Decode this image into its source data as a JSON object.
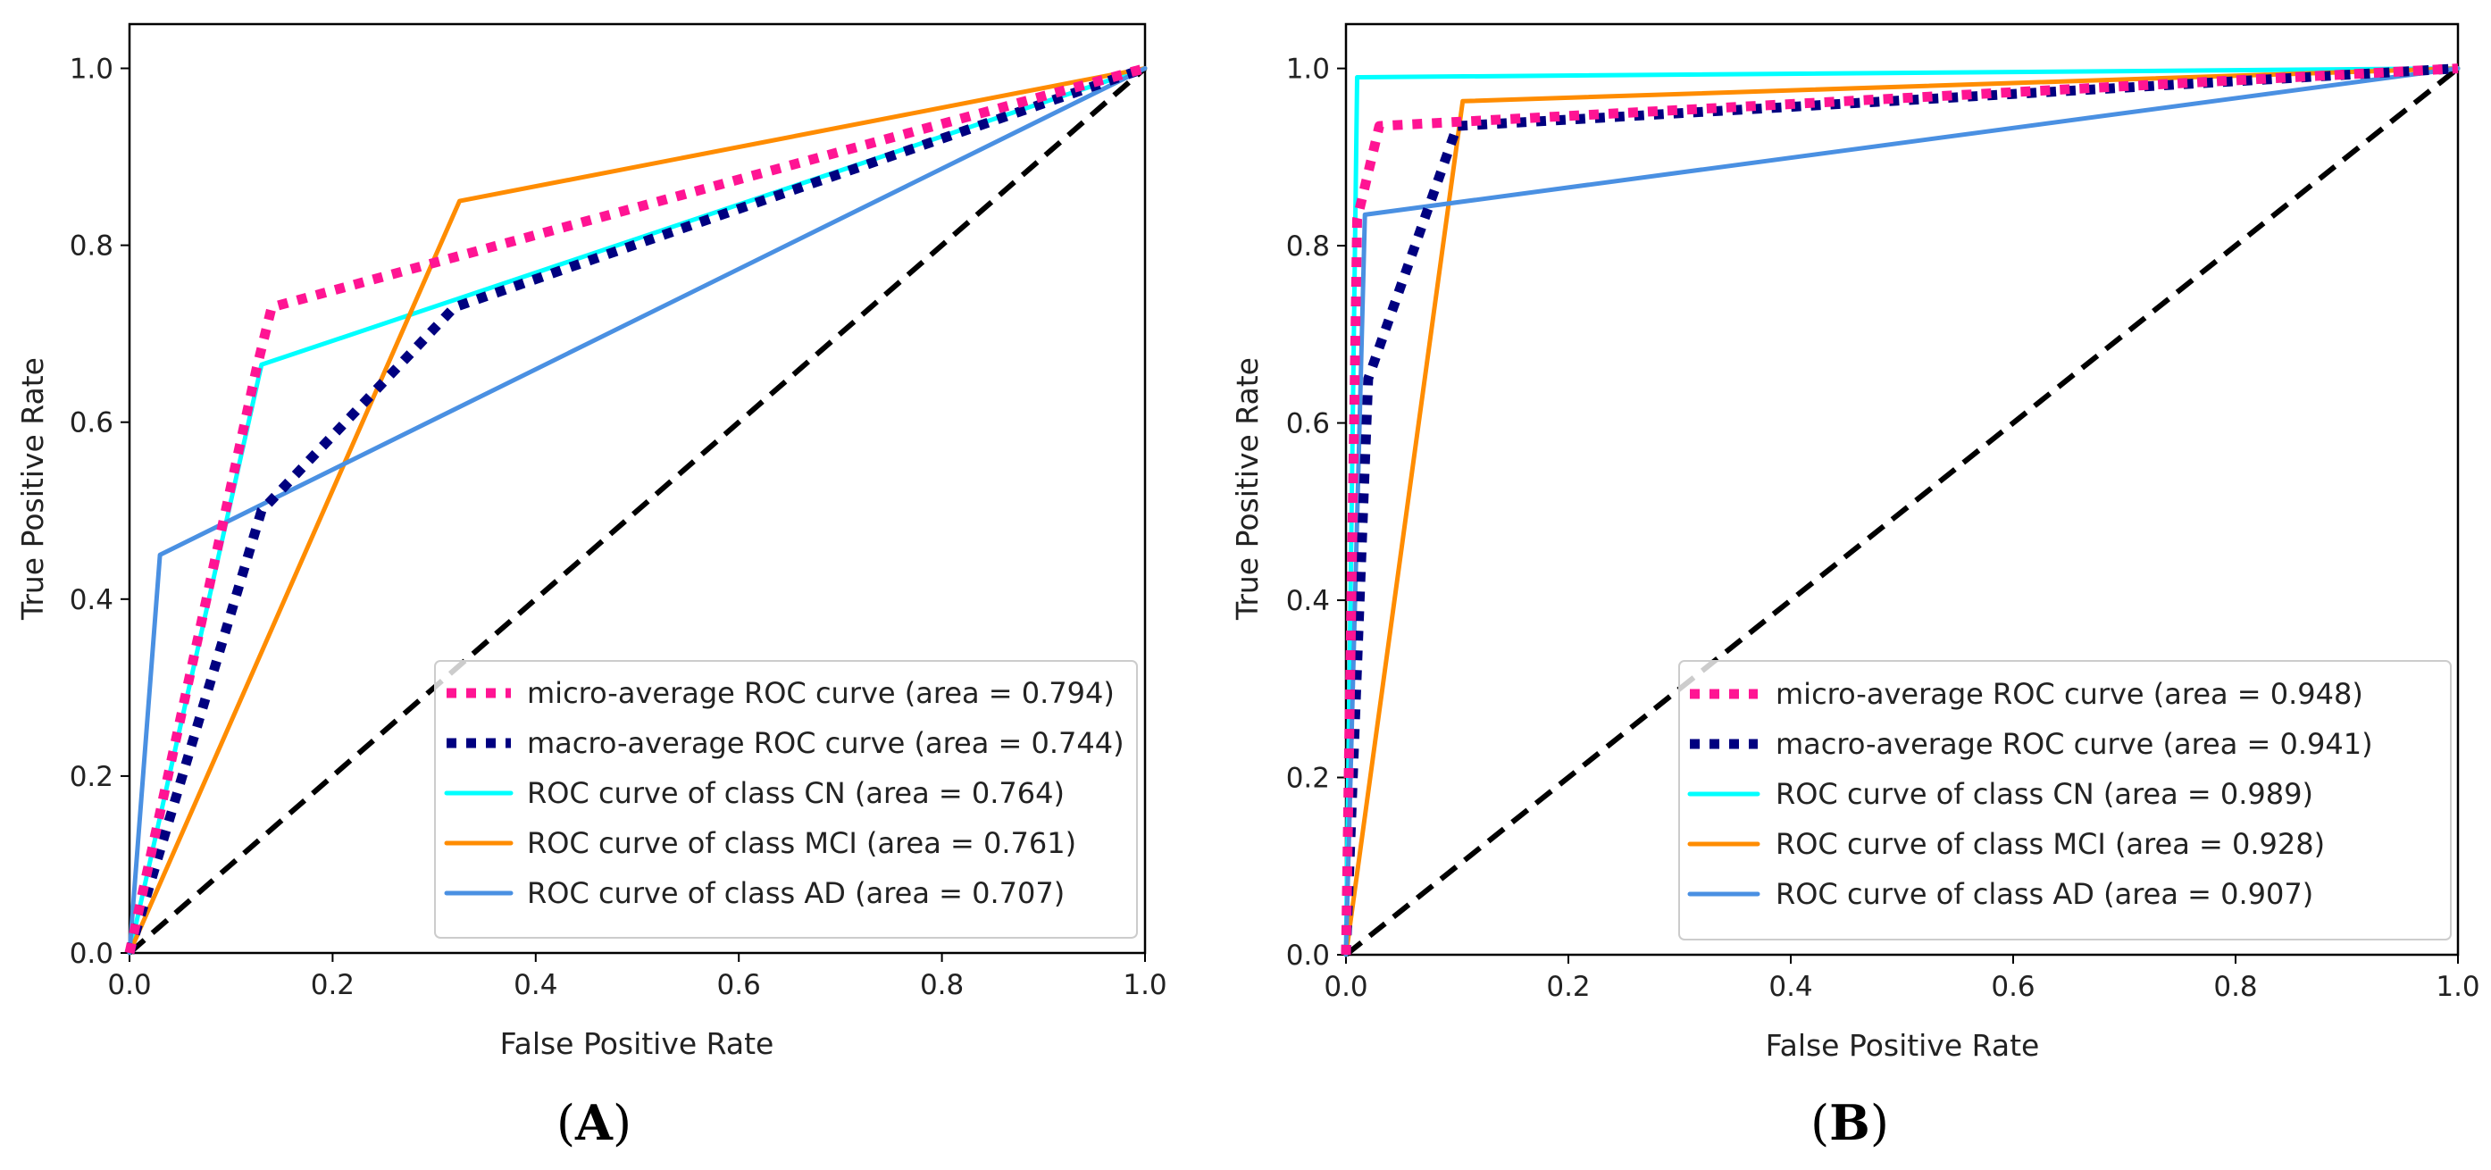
{
  "chart_data": [
    {
      "type": "line",
      "panel_label": "A",
      "xlabel": "False Positive Rate",
      "ylabel": "True Positive Rate",
      "xlim": [
        0.0,
        1.0
      ],
      "ylim": [
        0.0,
        1.05
      ],
      "xticks": [
        "0.0",
        "0.2",
        "0.4",
        "0.6",
        "0.8",
        "1.0"
      ],
      "yticks": [
        "0.0",
        "0.2",
        "0.4",
        "0.6",
        "0.8",
        "1.0"
      ],
      "legend_position": "lower right",
      "series": [
        {
          "name": "micro-average ROC curve (area = 0.794)",
          "color": "#ff1493",
          "style": "dotted",
          "x": [
            0.0,
            0.125,
            0.14,
            1.0
          ],
          "y": [
            0.0,
            0.66,
            0.73,
            1.0
          ]
        },
        {
          "name": "macro-average ROC curve (area = 0.744)",
          "color": "#000080",
          "style": "dotted",
          "x": [
            0.0,
            0.13,
            0.32,
            1.0
          ],
          "y": [
            0.0,
            0.5,
            0.73,
            1.0
          ]
        },
        {
          "name": "ROC curve of class CN (area = 0.764)",
          "color": "#00ffff",
          "style": "solid",
          "x": [
            0.0,
            0.13,
            1.0
          ],
          "y": [
            0.0,
            0.665,
            1.0
          ]
        },
        {
          "name": "ROC curve of class MCI (area = 0.761)",
          "color": "#ff8c00",
          "style": "solid",
          "x": [
            0.0,
            0.325,
            1.0
          ],
          "y": [
            0.0,
            0.85,
            1.0
          ]
        },
        {
          "name": "ROC curve of class AD (area = 0.707)",
          "color": "#4a90e2",
          "style": "solid",
          "x": [
            0.0,
            0.03,
            1.0
          ],
          "y": [
            0.0,
            0.45,
            1.0
          ]
        },
        {
          "name": "",
          "color": "#000000",
          "style": "dashed",
          "x": [
            0.0,
            1.0
          ],
          "y": [
            0.0,
            1.0
          ]
        }
      ]
    },
    {
      "type": "line",
      "panel_label": "B",
      "xlabel": "False Positive Rate",
      "ylabel": "True Positive Rate",
      "xlim": [
        0.0,
        1.0
      ],
      "ylim": [
        0.0,
        1.05
      ],
      "xticks": [
        "0.0",
        "0.2",
        "0.4",
        "0.6",
        "0.8",
        "1.0"
      ],
      "yticks": [
        "0.0",
        "0.2",
        "0.4",
        "0.6",
        "0.8",
        "1.0"
      ],
      "legend_position": "lower right",
      "series": [
        {
          "name": "micro-average ROC curve (area = 0.948)",
          "color": "#ff1493",
          "style": "dotted",
          "x": [
            0.0,
            0.01,
            0.03,
            1.0
          ],
          "y": [
            0.0,
            0.83,
            0.935,
            1.0
          ]
        },
        {
          "name": "macro-average ROC curve (area = 0.941)",
          "color": "#000080",
          "style": "dotted",
          "x": [
            0.0,
            0.02,
            0.1,
            1.0
          ],
          "y": [
            0.0,
            0.65,
            0.935,
            1.0
          ]
        },
        {
          "name": "ROC curve of class CN (area = 0.989)",
          "color": "#00ffff",
          "style": "solid",
          "x": [
            0.0,
            0.01,
            1.0
          ],
          "y": [
            0.0,
            0.99,
            1.0
          ]
        },
        {
          "name": "ROC curve of class MCI (area = 0.928)",
          "color": "#ff8c00",
          "style": "solid",
          "x": [
            0.0,
            0.105,
            1.0
          ],
          "y": [
            0.0,
            0.963,
            1.0
          ]
        },
        {
          "name": "ROC curve of class AD (area = 0.907)",
          "color": "#4a90e2",
          "style": "solid",
          "x": [
            0.0,
            0.017,
            1.0
          ],
          "y": [
            0.0,
            0.835,
            1.0
          ]
        },
        {
          "name": "",
          "color": "#000000",
          "style": "dashed",
          "x": [
            0.0,
            1.0
          ],
          "y": [
            0.0,
            1.0
          ]
        }
      ]
    }
  ]
}
